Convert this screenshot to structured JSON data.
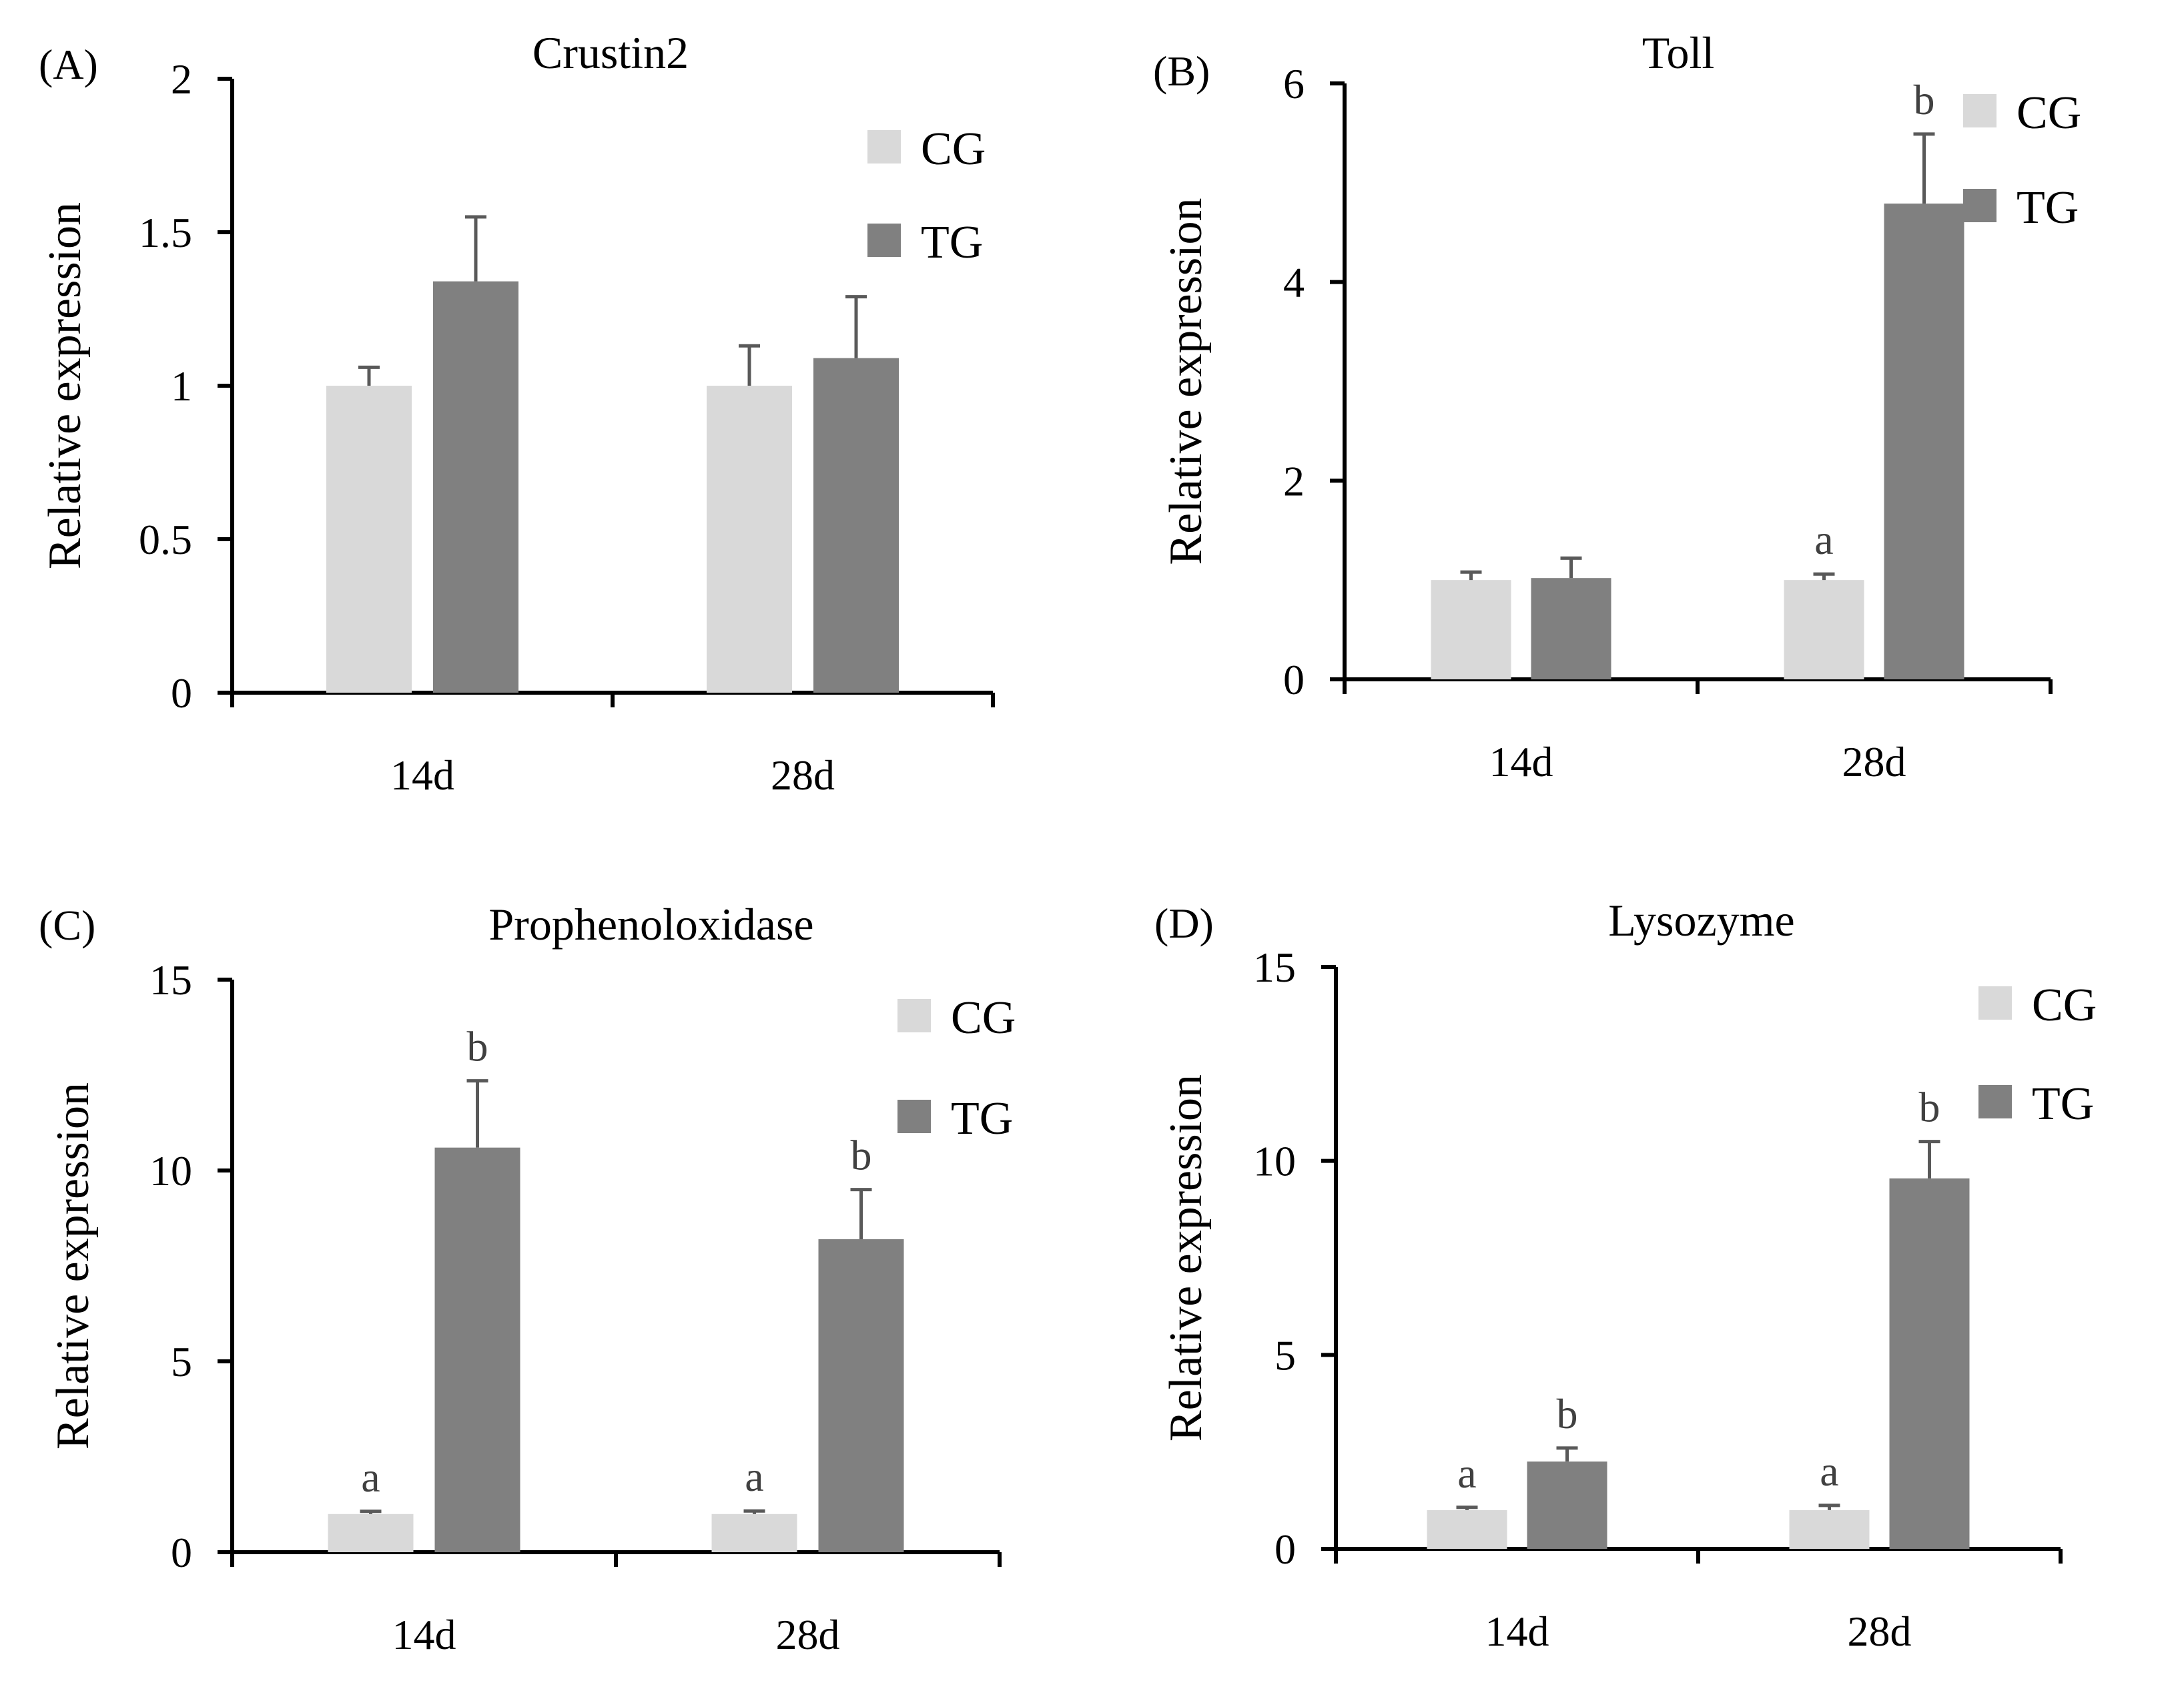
{
  "colors": {
    "CG": "#d9d9d9",
    "TG": "#808080",
    "axis": "#000000",
    "error": "#595959",
    "sig_label": "#404040"
  },
  "chart_data": [
    {
      "panel": "(A)",
      "type": "bar",
      "title": "Crustin2",
      "xlabel": "",
      "ylabel": "Relative expression",
      "categories": [
        "14d",
        "28d"
      ],
      "ylim": [
        0,
        2
      ],
      "yticks": [
        0,
        0.5,
        1,
        1.5,
        2
      ],
      "ytick_labels": [
        "0",
        "0.5",
        "1",
        "1.5",
        "2"
      ],
      "legend": [
        "CG",
        "TG"
      ],
      "legend_position": "top-right",
      "series": [
        {
          "name": "CG",
          "values": [
            1.0,
            1.0
          ],
          "errors": [
            0.06,
            0.13
          ],
          "labels": [
            "",
            ""
          ]
        },
        {
          "name": "TG",
          "values": [
            1.34,
            1.09
          ],
          "errors": [
            0.21,
            0.2
          ],
          "labels": [
            "",
            ""
          ]
        }
      ]
    },
    {
      "panel": "(B)",
      "type": "bar",
      "title": "Toll",
      "xlabel": "",
      "ylabel": "Relative expression",
      "categories": [
        "14d",
        "28d"
      ],
      "ylim": [
        0,
        6
      ],
      "yticks": [
        0,
        2,
        4,
        6
      ],
      "ytick_labels": [
        "0",
        "2",
        "4",
        "6"
      ],
      "legend": [
        "CG",
        "TG"
      ],
      "legend_position": "top-right",
      "series": [
        {
          "name": "CG",
          "values": [
            1.0,
            1.0
          ],
          "errors": [
            0.08,
            0.06
          ],
          "labels": [
            "",
            "a"
          ]
        },
        {
          "name": "TG",
          "values": [
            1.02,
            4.79
          ],
          "errors": [
            0.2,
            0.7
          ],
          "labels": [
            "",
            "b"
          ]
        }
      ]
    },
    {
      "panel": "(C)",
      "type": "bar",
      "title": "Prophenoloxidase",
      "xlabel": "",
      "ylabel": "Relative expression",
      "categories": [
        "14d",
        "28d"
      ],
      "ylim": [
        0,
        15
      ],
      "yticks": [
        0,
        5,
        10,
        15
      ],
      "ytick_labels": [
        "0",
        "5",
        "10",
        "15"
      ],
      "legend": [
        "CG",
        "TG"
      ],
      "legend_position": "top-right",
      "series": [
        {
          "name": "CG",
          "values": [
            1.0,
            1.0
          ],
          "errors": [
            0.07,
            0.08
          ],
          "labels": [
            "a",
            "a"
          ]
        },
        {
          "name": "TG",
          "values": [
            10.6,
            8.2
          ],
          "errors": [
            1.75,
            1.3
          ],
          "labels": [
            "b",
            "b"
          ]
        }
      ]
    },
    {
      "panel": "(D)",
      "type": "bar",
      "title": "Lysozyme",
      "xlabel": "",
      "ylabel": "Relative expression",
      "categories": [
        "14d",
        "28d"
      ],
      "ylim": [
        0,
        15
      ],
      "yticks": [
        0,
        5,
        10,
        15
      ],
      "ytick_labels": [
        "0",
        "5",
        "10",
        "15"
      ],
      "legend": [
        "CG",
        "TG"
      ],
      "legend_position": "top-right",
      "series": [
        {
          "name": "CG",
          "values": [
            1.0,
            1.0
          ],
          "errors": [
            0.07,
            0.12
          ],
          "labels": [
            "a",
            "a"
          ]
        },
        {
          "name": "TG",
          "values": [
            2.25,
            9.55
          ],
          "errors": [
            0.35,
            0.95
          ],
          "labels": [
            "b",
            "b"
          ]
        }
      ]
    }
  ]
}
